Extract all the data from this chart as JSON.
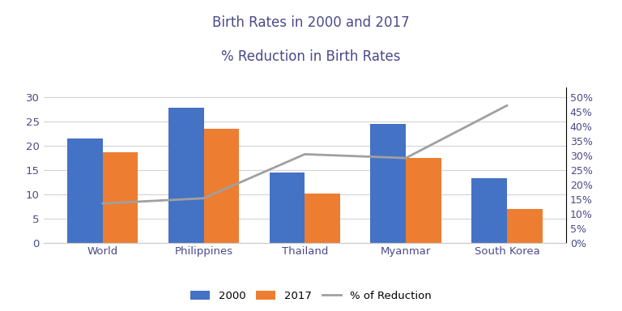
{
  "title_line1": "Birth Rates in 2000 and 2017",
  "title_line2": "% Reduction in Birth Rates",
  "categories": [
    "World",
    "Philippines",
    "Thailand",
    "Myanmar",
    "South Korea"
  ],
  "values_2000": [
    21.5,
    27.7,
    14.5,
    24.5,
    13.2
  ],
  "values_2017": [
    18.6,
    23.5,
    10.1,
    17.4,
    7.0
  ],
  "pct_reduction": [
    0.134,
    0.152,
    0.303,
    0.29,
    0.47
  ],
  "bar_color_2000": "#4472C4",
  "bar_color_2017": "#ED7D31",
  "line_color": "#A0A0A0",
  "title_color": "#4A4A8A",
  "axis_label_color": "#4A4A8A",
  "ylim_left": [
    0,
    32
  ],
  "ylim_right": [
    0,
    0.5333
  ],
  "yticks_left": [
    0,
    5,
    10,
    15,
    20,
    25,
    30
  ],
  "yticks_right": [
    0.0,
    0.05,
    0.1,
    0.15,
    0.2,
    0.25,
    0.3,
    0.35,
    0.4,
    0.45,
    0.5
  ],
  "bar_width": 0.35,
  "legend_labels": [
    "2000",
    "2017",
    "% of Reduction"
  ],
  "figsize": [
    7.68,
    3.84
  ],
  "dpi": 100
}
